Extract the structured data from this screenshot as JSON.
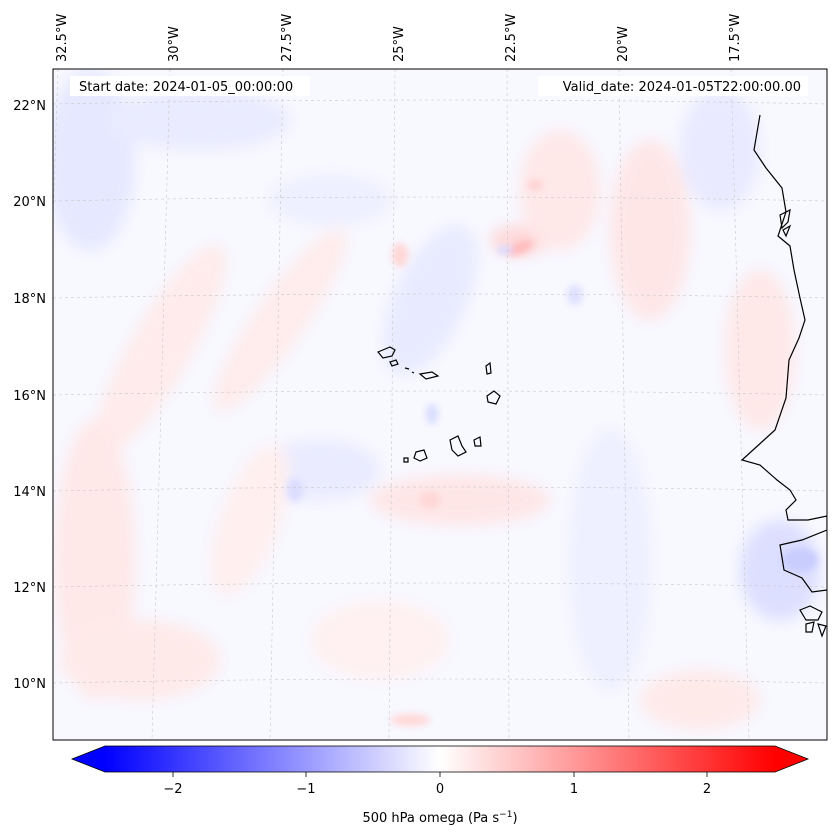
{
  "header": {
    "start_date": "Start date: 2024-01-05_00:00:00",
    "valid_date": "Valid_date: 2024-01-05T22:00:00.00"
  },
  "map": {
    "longitude_labels": [
      "32.5°W",
      "30°W",
      "27.5°W",
      "25°W",
      "22.5°W",
      "20°W",
      "17.5°W"
    ],
    "latitude_labels": [
      "22°N",
      "20°N",
      "18°N",
      "16°N",
      "14°N",
      "12°N",
      "10°N"
    ],
    "field": "500 hPa omega"
  },
  "colorbar": {
    "ticks": [
      "−2",
      "−1",
      "0",
      "1",
      "2"
    ],
    "label_main": "500 hPa omega (Pa s",
    "label_exp": "−1",
    "label_close": ")",
    "min_color": "#0000ff",
    "mid_color": "#ffffff",
    "max_color": "#ff0000"
  }
}
